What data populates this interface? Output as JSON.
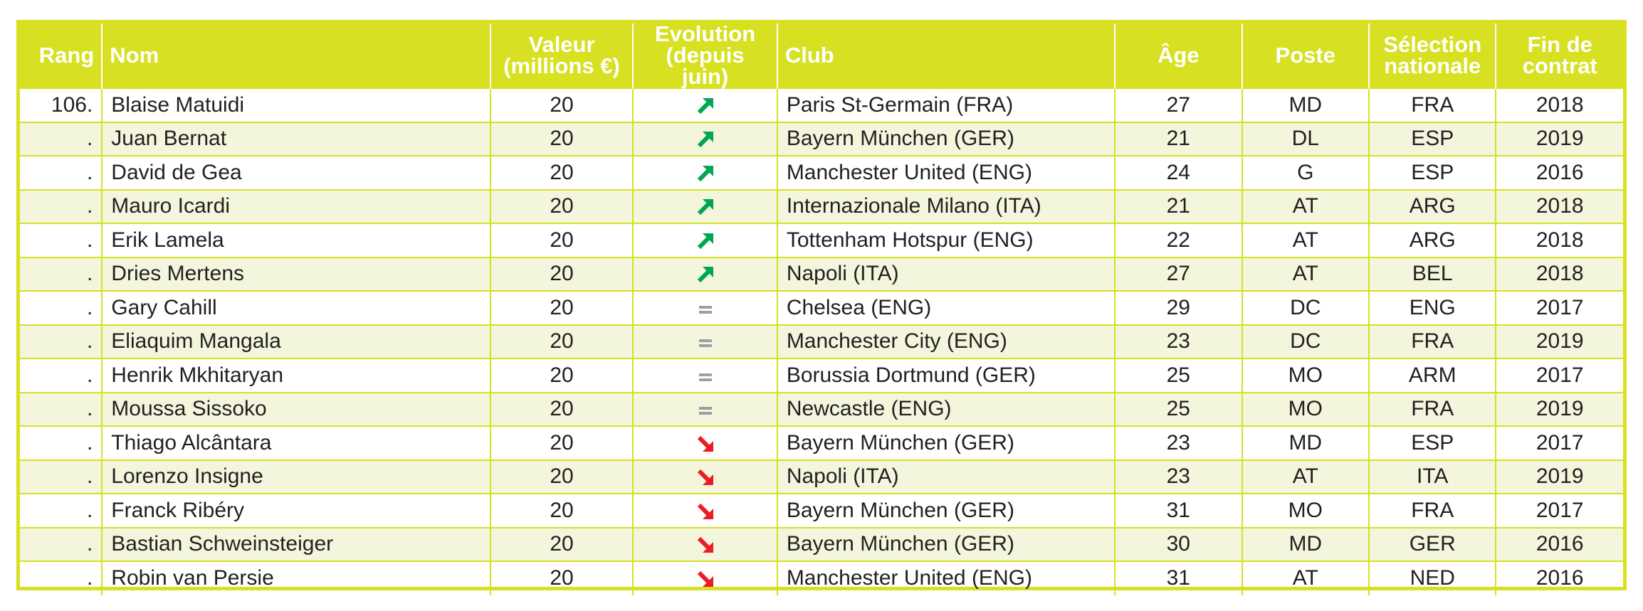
{
  "headers": {
    "rang": "Rang",
    "nom": "Nom",
    "valeur_1": "Valeur",
    "valeur_2": "(millions €)",
    "evolution_1": "Evolution",
    "evolution_2": "(depuis juin)",
    "club": "Club",
    "age": "Âge",
    "poste": "Poste",
    "selection_1": "Sélection",
    "selection_2": "nationale",
    "fin_1": "Fin de",
    "fin_2": "contrat"
  },
  "colors": {
    "accent": "#d7e021",
    "up": "#00a651",
    "down": "#ed1c24",
    "equal": "#9d9fa2",
    "row_alt": "#f3f6dd"
  },
  "rows": [
    {
      "rang": "106.",
      "nom": "Blaise Matuidi",
      "valeur": "20",
      "evolution": "up",
      "club": "Paris St-Germain (FRA)",
      "age": "27",
      "poste": "MD",
      "selection": "FRA",
      "fin": "2018"
    },
    {
      "rang": ".",
      "nom": "Juan Bernat",
      "valeur": "20",
      "evolution": "up",
      "club": "Bayern München (GER)",
      "age": "21",
      "poste": "DL",
      "selection": "ESP",
      "fin": "2019"
    },
    {
      "rang": ".",
      "nom": "David de Gea",
      "valeur": "20",
      "evolution": "up",
      "club": "Manchester United (ENG)",
      "age": "24",
      "poste": "G",
      "selection": "ESP",
      "fin": "2016"
    },
    {
      "rang": ".",
      "nom": "Mauro Icardi",
      "valeur": "20",
      "evolution": "up",
      "club": "Internazionale Milano (ITA)",
      "age": "21",
      "poste": "AT",
      "selection": "ARG",
      "fin": "2018"
    },
    {
      "rang": ".",
      "nom": "Erik Lamela",
      "valeur": "20",
      "evolution": "up",
      "club": "Tottenham Hotspur (ENG)",
      "age": "22",
      "poste": "AT",
      "selection": "ARG",
      "fin": "2018"
    },
    {
      "rang": ".",
      "nom": "Dries Mertens",
      "valeur": "20",
      "evolution": "up",
      "club": "Napoli (ITA)",
      "age": "27",
      "poste": "AT",
      "selection": "BEL",
      "fin": "2018"
    },
    {
      "rang": ".",
      "nom": "Gary Cahill",
      "valeur": "20",
      "evolution": "equal",
      "club": "Chelsea (ENG)",
      "age": "29",
      "poste": "DC",
      "selection": "ENG",
      "fin": "2017"
    },
    {
      "rang": ".",
      "nom": "Eliaquim Mangala",
      "valeur": "20",
      "evolution": "equal",
      "club": "Manchester City (ENG)",
      "age": "23",
      "poste": "DC",
      "selection": "FRA",
      "fin": "2019"
    },
    {
      "rang": ".",
      "nom": "Henrik Mkhitaryan",
      "valeur": "20",
      "evolution": "equal",
      "club": "Borussia Dortmund (GER)",
      "age": "25",
      "poste": "MO",
      "selection": "ARM",
      "fin": "2017"
    },
    {
      "rang": ".",
      "nom": "Moussa Sissoko",
      "valeur": "20",
      "evolution": "equal",
      "club": "Newcastle (ENG)",
      "age": "25",
      "poste": "MO",
      "selection": "FRA",
      "fin": "2019"
    },
    {
      "rang": ".",
      "nom": "Thiago Alcântara",
      "valeur": "20",
      "evolution": "down",
      "club": "Bayern München (GER)",
      "age": "23",
      "poste": "MD",
      "selection": "ESP",
      "fin": "2017"
    },
    {
      "rang": ".",
      "nom": "Lorenzo Insigne",
      "valeur": "20",
      "evolution": "down",
      "club": "Napoli (ITA)",
      "age": "23",
      "poste": "AT",
      "selection": "ITA",
      "fin": "2019"
    },
    {
      "rang": ".",
      "nom": "Franck Ribéry",
      "valeur": "20",
      "evolution": "down",
      "club": "Bayern München (GER)",
      "age": "31",
      "poste": "MO",
      "selection": "FRA",
      "fin": "2017"
    },
    {
      "rang": ".",
      "nom": "Bastian Schweinsteiger",
      "valeur": "20",
      "evolution": "down",
      "club": "Bayern München (GER)",
      "age": "30",
      "poste": "MD",
      "selection": "GER",
      "fin": "2016"
    },
    {
      "rang": ".",
      "nom": "Robin van Persie",
      "valeur": "20",
      "evolution": "down",
      "club": "Manchester United (ENG)",
      "age": "31",
      "poste": "AT",
      "selection": "NED",
      "fin": "2016"
    }
  ]
}
